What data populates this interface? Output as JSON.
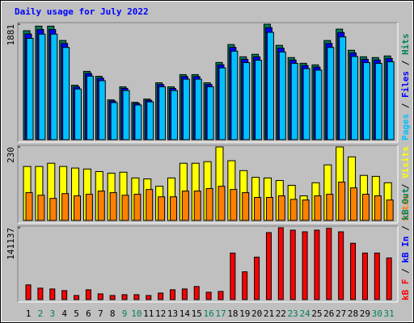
{
  "title": "Daily usage for July 2022",
  "weekend_color": "#008060",
  "weekday_color": "#000000",
  "weekend_days": [
    2,
    3,
    9,
    10,
    16,
    17,
    23,
    24,
    30,
    31
  ],
  "chart_data": [
    {
      "type": "bar",
      "ylim": [
        0,
        1881
      ],
      "yticks": [
        1881
      ],
      "separator": " / ",
      "series": [
        {
          "name": "Hits",
          "color": "#00805c",
          "values": [
            1775,
            1850,
            1850,
            1616,
            888,
            1113,
            1033,
            649,
            861,
            609,
            662,
            927,
            861,
            1060,
            1060,
            927,
            1258,
            1550,
            1351,
            1391,
            1881,
            1537,
            1338,
            1245,
            1219,
            1616,
            1801,
            1457,
            1351,
            1338,
            1364
          ]
        },
        {
          "name": "Files",
          "color": "#0000ff",
          "values": [
            1722,
            1795,
            1795,
            1568,
            861,
            1080,
            1002,
            630,
            835,
            591,
            642,
            899,
            835,
            1028,
            1028,
            899,
            1220,
            1504,
            1310,
            1349,
            1825,
            1491,
            1298,
            1208,
            1182,
            1568,
            1747,
            1413,
            1310,
            1298,
            1323
          ]
        },
        {
          "name": "Pages",
          "color": "#00c0ff",
          "values": [
            1651,
            1720,
            1720,
            1503,
            826,
            1035,
            961,
            604,
            801,
            566,
            616,
            862,
            801,
            986,
            986,
            862,
            1170,
            1442,
            1256,
            1294,
            1749,
            1429,
            1244,
            1158,
            1134,
            1503,
            1675,
            1355,
            1256,
            1244,
            1269
          ]
        }
      ]
    },
    {
      "type": "bar",
      "ylim": [
        0,
        230
      ],
      "yticks": [
        230
      ],
      "separator": " / ",
      "series": [
        {
          "name": "Visits",
          "color": "#ffff00",
          "values": [
            169,
            169,
            179,
            169,
            164,
            161,
            153,
            148,
            151,
            133,
            130,
            107,
            133,
            179,
            179,
            184,
            230,
            187,
            156,
            135,
            133,
            125,
            110,
            77,
            118,
            174,
            230,
            199,
            141,
            138,
            118
          ]
        },
        {
          "name": "Sites",
          "color": "#ff8000",
          "values": [
            87,
            79,
            69,
            84,
            77,
            82,
            92,
            87,
            79,
            82,
            97,
            74,
            74,
            92,
            92,
            100,
            107,
            97,
            87,
            72,
            72,
            77,
            66,
            64,
            77,
            82,
            120,
            102,
            82,
            77,
            64
          ]
        }
      ]
    },
    {
      "type": "bar",
      "ylim": [
        0,
        141137
      ],
      "yticks": [
        141137
      ],
      "separator": " / ",
      "categories": [
        "1",
        "2",
        "3",
        "4",
        "5",
        "6",
        "7",
        "8",
        "9",
        "10",
        "11",
        "12",
        "13",
        "14",
        "15",
        "16",
        "17",
        "18",
        "19",
        "20",
        "21",
        "22",
        "23",
        "24",
        "25",
        "26",
        "27",
        "28",
        "29",
        "30",
        "31"
      ],
      "legend_extra": [
        {
          "text": "kB In",
          "color": "#0000ff"
        },
        {
          "text": "kB Out",
          "color": "#00805c"
        }
      ],
      "series": [
        {
          "name": "kB F",
          "color": "#ff0000",
          "values": [
            28872,
            22456,
            20852,
            17644,
            8020,
            19248,
            11228,
            8020,
            9624,
            9624,
            8020,
            12832,
            19248,
            20852,
            25664,
            14436,
            16040,
            91428,
            54536,
            83408,
            131528,
            141137,
            136340,
            133132,
            136340,
            140000,
            133132,
            110676,
            91428,
            91428,
            81804
          ]
        }
      ]
    }
  ]
}
